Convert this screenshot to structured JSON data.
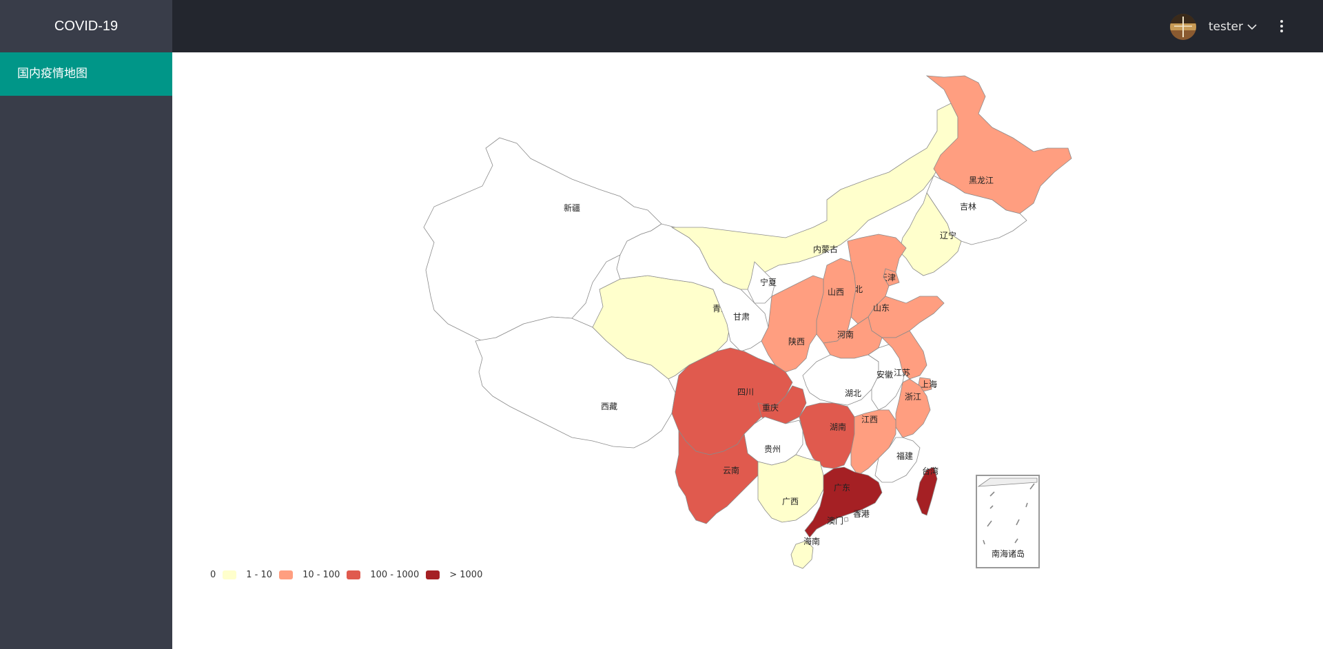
{
  "app": {
    "title": "COVID-19"
  },
  "sidebar": {
    "items": [
      {
        "label": "国内疫情地图"
      }
    ]
  },
  "header": {
    "username": "tester"
  },
  "colors": {
    "none": "#ffffff",
    "c1_10": "#ffffcc",
    "c10_100": "#ff9e80",
    "c100_1000": "#e05a4e",
    "c1000": "#a52024"
  },
  "legend": {
    "items": [
      {
        "label": "0",
        "color": "#ffffcc"
      },
      {
        "label": "1 - 10",
        "color": "#ff9e80"
      },
      {
        "label": "10 - 100",
        "color": "#e05a4e"
      },
      {
        "label": "100 - 1000",
        "color": "#a52024"
      },
      {
        "label": "> 1000"
      }
    ]
  },
  "map": {
    "provinces": [
      {
        "name": "新疆",
        "level": "none"
      },
      {
        "name": "西藏",
        "level": "none"
      },
      {
        "name": "青海",
        "level": "c1_10"
      },
      {
        "name": "甘肃",
        "level": "none"
      },
      {
        "name": "内蒙古",
        "level": "c1_10"
      },
      {
        "name": "宁夏",
        "level": "none"
      },
      {
        "name": "黑龙江",
        "level": "c10_100"
      },
      {
        "name": "吉林",
        "level": "none"
      },
      {
        "name": "辽宁",
        "level": "c1_10"
      },
      {
        "name": "北京",
        "level": "c100_1000"
      },
      {
        "name": "天津",
        "level": "c10_100"
      },
      {
        "name": "河北",
        "level": "c10_100"
      },
      {
        "name": "山西",
        "level": "c10_100"
      },
      {
        "name": "山东",
        "level": "c10_100"
      },
      {
        "name": "陕西",
        "level": "c10_100"
      },
      {
        "name": "河南",
        "level": "c10_100"
      },
      {
        "name": "四川",
        "level": "c100_1000"
      },
      {
        "name": "重庆",
        "level": "c100_1000"
      },
      {
        "name": "湖北",
        "level": "none"
      },
      {
        "name": "安徽",
        "level": "none"
      },
      {
        "name": "江苏",
        "level": "c10_100"
      },
      {
        "name": "上海",
        "level": "c10_100"
      },
      {
        "name": "浙江",
        "level": "c10_100"
      },
      {
        "name": "湖南",
        "level": "c100_1000"
      },
      {
        "name": "江西",
        "level": "c10_100"
      },
      {
        "name": "福建",
        "level": "none"
      },
      {
        "name": "贵州",
        "level": "none"
      },
      {
        "name": "云南",
        "level": "c100_1000"
      },
      {
        "name": "广西",
        "level": "c1_10"
      },
      {
        "name": "广东",
        "level": "c1000"
      },
      {
        "name": "台湾",
        "level": "c1000"
      },
      {
        "name": "香港",
        "level": "none"
      },
      {
        "name": "澳门",
        "level": "none"
      },
      {
        "name": "海南",
        "level": "c1_10"
      },
      {
        "name": "南海诸岛",
        "level": "none"
      }
    ]
  }
}
